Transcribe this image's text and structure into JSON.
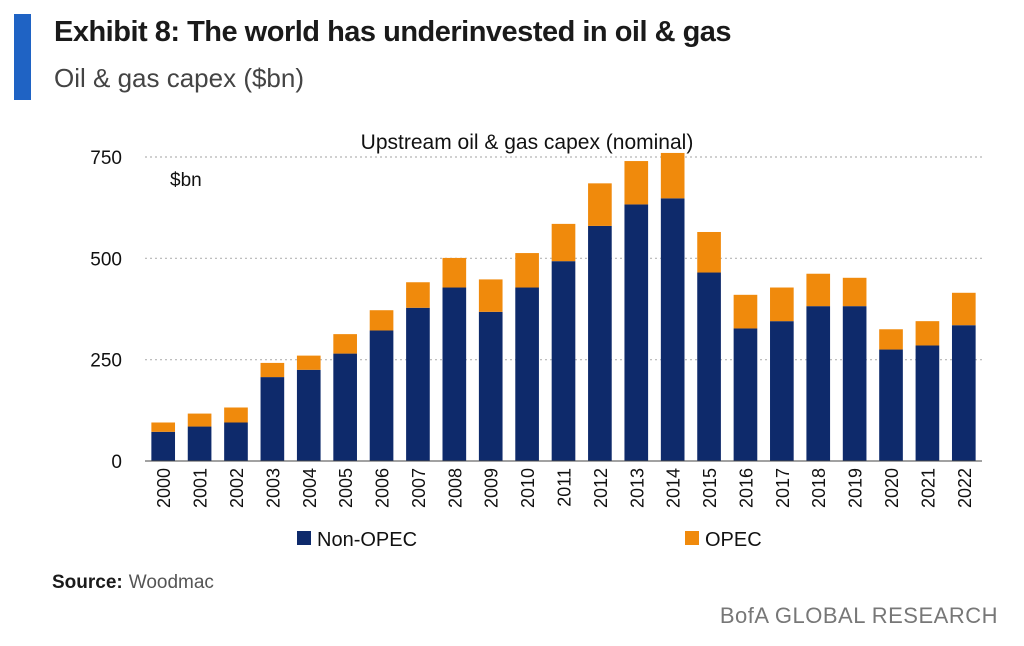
{
  "header": {
    "title": "Exhibit 8: The world has underinvested in oil & gas",
    "subtitle": "Oil & gas capex ($bn)",
    "accent_color": "#1f63c4"
  },
  "footer": {
    "source_label": "Source:",
    "source_value": "Woodmac",
    "brand": "BofA GLOBAL RESEARCH"
  },
  "chart_data": {
    "type": "bar",
    "stacked": true,
    "title": "Upstream oil & gas capex (nominal)",
    "unit_label": "$bn",
    "xlabel": "",
    "ylabel": "",
    "ylim": [
      0,
      750
    ],
    "yticks": [
      0,
      250,
      500,
      750
    ],
    "grid": "horizontal-dotted",
    "legend_position": "bottom",
    "categories": [
      "2000",
      "2001",
      "2002",
      "2003",
      "2004",
      "2005",
      "2006",
      "2007",
      "2008",
      "2009",
      "2010",
      "2011",
      "2012",
      "2013",
      "2014",
      "2015",
      "2016",
      "2017",
      "2018",
      "2019",
      "2020",
      "2021",
      "2022"
    ],
    "series": [
      {
        "name": "Non-OPEC",
        "color": "#0e2a6b",
        "values": [
          72,
          85,
          95,
          207,
          225,
          265,
          322,
          378,
          428,
          368,
          428,
          493,
          580,
          633,
          648,
          465,
          327,
          345,
          382,
          382,
          275,
          285,
          335
        ]
      },
      {
        "name": "OPEC",
        "color": "#f08a0c",
        "values": [
          23,
          32,
          37,
          35,
          35,
          48,
          50,
          63,
          73,
          80,
          85,
          92,
          105,
          107,
          112,
          100,
          83,
          83,
          80,
          70,
          50,
          60,
          80
        ]
      }
    ]
  }
}
